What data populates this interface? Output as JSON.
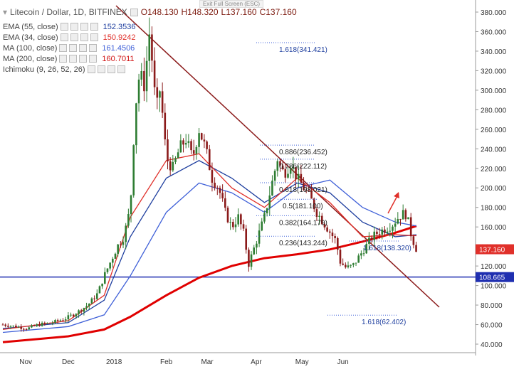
{
  "header": {
    "symbol": "Litecoin / Dollar, 1D, BITFINEX",
    "open": "O148.130",
    "high": "H148.320",
    "low": "L137.160",
    "close": "C137.160",
    "exit_fullscreen": "Exit Full Screen (ESC)"
  },
  "indicators": [
    {
      "name": "EMA (55, close)",
      "value": "152.3536",
      "color": "#1f3f9f"
    },
    {
      "name": "EMA (34, close)",
      "value": "150.9242",
      "color": "#e0302a"
    },
    {
      "name": "MA (100, close)",
      "value": "161.4506",
      "color": "#3f60d8"
    },
    {
      "name": "MA (200, close)",
      "value": "160.7011",
      "color": "#d01010"
    },
    {
      "name": "Ichimoku (9, 26, 52, 26)",
      "value": "",
      "color": "#aaaaaa"
    }
  ],
  "chart_data": {
    "type": "candlestick",
    "title": "Litecoin / Dollar, 1D, BITFINEX",
    "ylim": [
      30,
      390
    ],
    "y_ticks": [
      "40.000",
      "60.000",
      "80.000",
      "100.000",
      "120.000",
      "140.000",
      "160.000",
      "180.000",
      "200.000",
      "220.000",
      "240.000",
      "260.000",
      "280.000",
      "300.000",
      "320.000",
      "340.000",
      "360.000",
      "380.000"
    ],
    "x_ticks": [
      "Nov",
      "Dec",
      "2018",
      "Feb",
      "Mar",
      "Apr",
      "May",
      "Jun"
    ],
    "current_price": "137.160",
    "support_level": "108.665",
    "support_value": 108.665,
    "fib_labels": [
      "1.618(341.421)",
      "0.886(236.452)",
      "0.786(222.112)",
      "0.618(198.021)",
      "0.5(181.100)",
      "0.382(164.179)",
      "0.236(143.244)",
      "1.618(138.320)",
      "1.618(62.402)"
    ],
    "price_path": [
      [
        0,
        60
      ],
      [
        8,
        58
      ],
      [
        15,
        56
      ],
      [
        22,
        60
      ],
      [
        30,
        62
      ],
      [
        38,
        66
      ],
      [
        45,
        72
      ],
      [
        52,
        80
      ],
      [
        58,
        92
      ],
      [
        62,
        110
      ],
      [
        66,
        125
      ],
      [
        70,
        140
      ],
      [
        74,
        150
      ],
      [
        78,
        180
      ],
      [
        80,
        250
      ],
      [
        82,
        300
      ],
      [
        84,
        320
      ],
      [
        86,
        300
      ],
      [
        88,
        330
      ],
      [
        90,
        365
      ],
      [
        92,
        310
      ],
      [
        94,
        280
      ],
      [
        96,
        300
      ],
      [
        98,
        270
      ],
      [
        100,
        230
      ],
      [
        104,
        220
      ],
      [
        108,
        240
      ],
      [
        112,
        250
      ],
      [
        116,
        230
      ],
      [
        120,
        260
      ],
      [
        124,
        240
      ],
      [
        128,
        210
      ],
      [
        132,
        200
      ],
      [
        136,
        175
      ],
      [
        140,
        160
      ],
      [
        144,
        170
      ],
      [
        148,
        150
      ],
      [
        150,
        120
      ],
      [
        152,
        130
      ],
      [
        156,
        150
      ],
      [
        160,
        170
      ],
      [
        164,
        200
      ],
      [
        168,
        230
      ],
      [
        170,
        220
      ],
      [
        172,
        215
      ],
      [
        176,
        225
      ],
      [
        180,
        210
      ],
      [
        184,
        200
      ],
      [
        188,
        190
      ],
      [
        192,
        175
      ],
      [
        196,
        165
      ],
      [
        200,
        155
      ],
      [
        204,
        145
      ],
      [
        206,
        125
      ],
      [
        210,
        118
      ],
      [
        214,
        120
      ],
      [
        218,
        130
      ],
      [
        222,
        140
      ],
      [
        226,
        150
      ],
      [
        230,
        155
      ],
      [
        234,
        158
      ],
      [
        238,
        162
      ],
      [
        242,
        170
      ],
      [
        246,
        175
      ],
      [
        248,
        165
      ],
      [
        250,
        150
      ],
      [
        253,
        137
      ]
    ],
    "ema55": [
      [
        0,
        56
      ],
      [
        40,
        62
      ],
      [
        62,
        85
      ],
      [
        78,
        150
      ],
      [
        100,
        210
      ],
      [
        120,
        228
      ],
      [
        140,
        210
      ],
      [
        160,
        185
      ],
      [
        180,
        205
      ],
      [
        200,
        195
      ],
      [
        220,
        165
      ],
      [
        240,
        150
      ],
      [
        253,
        152
      ]
    ],
    "ema34": [
      [
        0,
        55
      ],
      [
        40,
        64
      ],
      [
        62,
        90
      ],
      [
        78,
        170
      ],
      [
        100,
        228
      ],
      [
        120,
        235
      ],
      [
        140,
        200
      ],
      [
        160,
        180
      ],
      [
        180,
        210
      ],
      [
        200,
        185
      ],
      [
        220,
        150
      ],
      [
        240,
        152
      ],
      [
        253,
        151
      ]
    ],
    "ma100": [
      [
        0,
        52
      ],
      [
        40,
        58
      ],
      [
        62,
        70
      ],
      [
        78,
        110
      ],
      [
        100,
        175
      ],
      [
        120,
        205
      ],
      [
        140,
        195
      ],
      [
        160,
        175
      ],
      [
        180,
        200
      ],
      [
        200,
        208
      ],
      [
        220,
        180
      ],
      [
        240,
        165
      ],
      [
        253,
        161
      ]
    ],
    "ma200": [
      [
        0,
        42
      ],
      [
        40,
        48
      ],
      [
        62,
        55
      ],
      [
        78,
        68
      ],
      [
        100,
        90
      ],
      [
        120,
        108
      ],
      [
        140,
        120
      ],
      [
        160,
        128
      ],
      [
        180,
        132
      ],
      [
        200,
        137
      ],
      [
        220,
        145
      ],
      [
        240,
        154
      ],
      [
        253,
        161
      ]
    ]
  }
}
